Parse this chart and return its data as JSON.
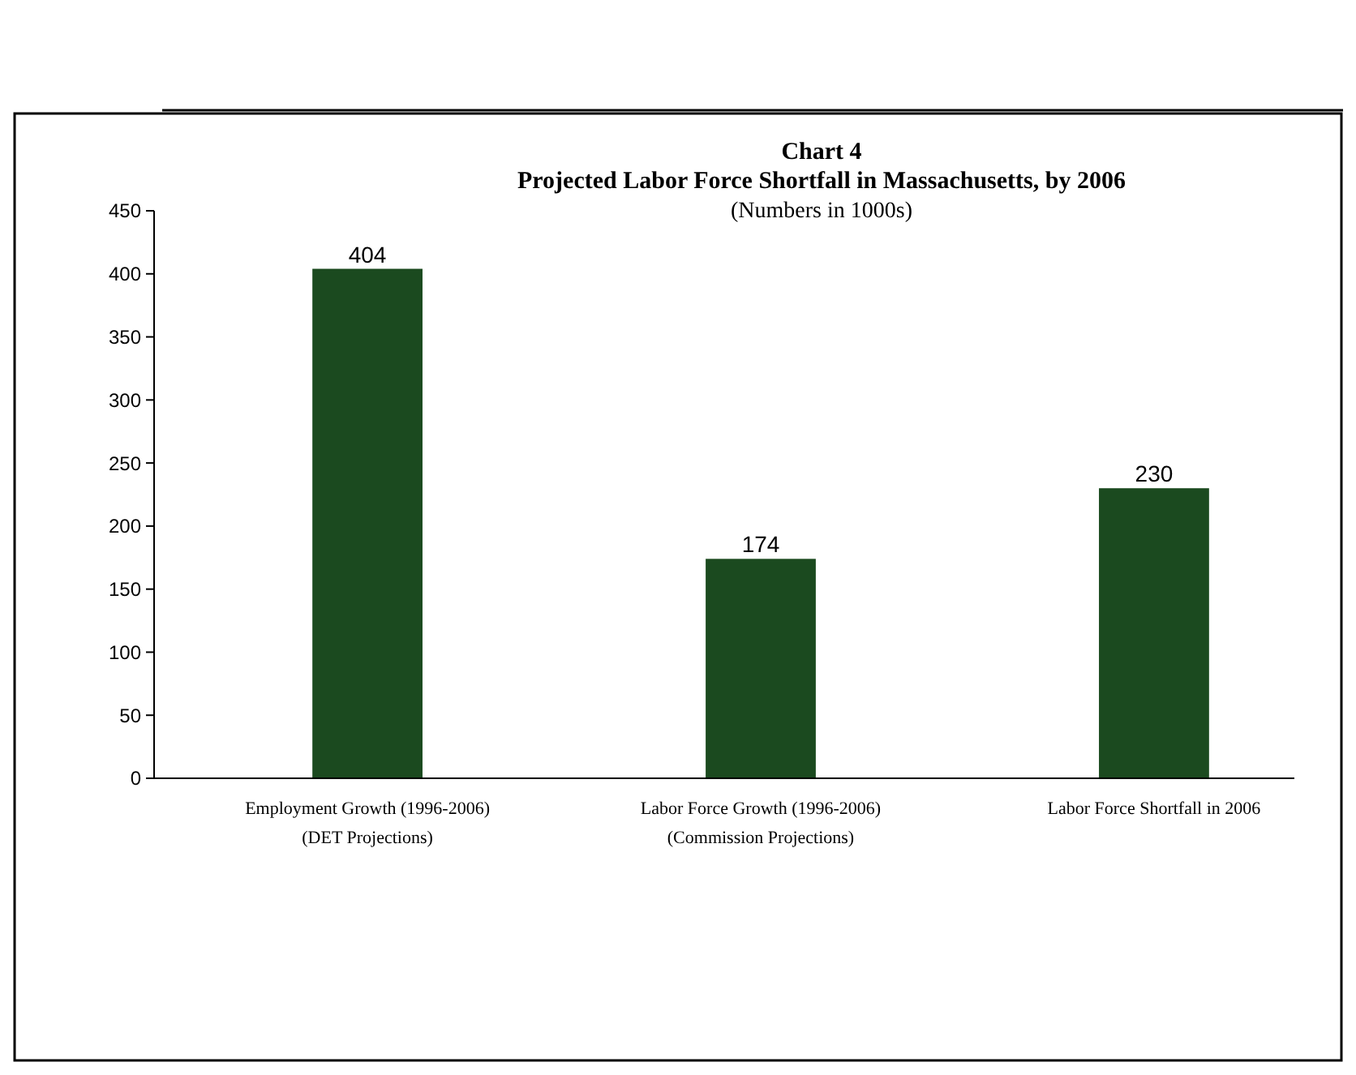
{
  "chart_data": {
    "type": "bar",
    "title": "Chart 4",
    "subtitle": "Projected Labor Force Shortfall in Massachusetts, by 2006",
    "annotations": [
      "(Numbers in 1000s)"
    ],
    "categories": [
      "Employment Growth (1996-2006)\n(DET Projections)",
      "Labor Force Growth (1996-2006)\n(Commission Projections)",
      "Labor Force Shortfall in 2006"
    ],
    "values": [
      404,
      174,
      230
    ],
    "color": "#1b4a1f",
    "ylim": [
      0,
      450
    ],
    "yticks": [
      0,
      50,
      100,
      150,
      200,
      250,
      300,
      350,
      400,
      450
    ],
    "grid": false,
    "data_labels": true
  }
}
